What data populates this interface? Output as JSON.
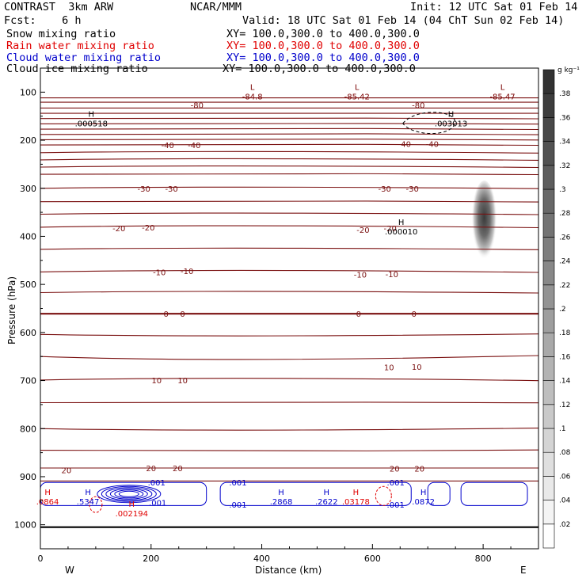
{
  "header": {
    "model": "CONTRAST  3km ARW",
    "org": "NCAR/MMM",
    "init": "Init: 12 UTC Sat 01 Feb 14",
    "fcst": "Fcst:    6 h",
    "valid": "Valid: 18 UTC Sat 01 Feb 14 (04 ChT Sun 02 Feb 14)",
    "fields": [
      {
        "name": "Snow mixing ratio",
        "xy": "XY= 100.0,300.0 to 400.0,300.0",
        "color": "#000000"
      },
      {
        "name": "Rain water mixing ratio",
        "xy": "XY= 100.0,300.0 to 400.0,300.0",
        "color": "#e00000"
      },
      {
        "name": "Cloud water mixing ratio",
        "xy": "XY= 100.0,300.0 to 400.0,300.0",
        "color": "#0000cc"
      },
      {
        "name": "Cloud ice mixing ratio",
        "xy": "XY= 100.0,300.0 to 400.0,300.0",
        "color": "#000000"
      }
    ]
  },
  "chart_data": {
    "type": "contour",
    "xlabel": "Distance (km)",
    "ylabel": "Pressure (hPa)",
    "x_ticks": [
      0,
      200,
      400,
      600,
      800
    ],
    "xlim": [
      0,
      900
    ],
    "y_ticks": [
      100,
      200,
      300,
      400,
      500,
      600,
      700,
      800,
      900,
      1000
    ],
    "ylim": [
      50,
      1050
    ],
    "x_end_labels": {
      "left": "W",
      "right": "E"
    },
    "colorbar": {
      "unit": "g kg⁻¹",
      "ticks": [
        ".02",
        ".04",
        ".06",
        ".08",
        ".1",
        ".12",
        ".14",
        ".16",
        ".18",
        ".2",
        ".22",
        ".24",
        ".26",
        ".28",
        ".3",
        ".32",
        ".34",
        ".36",
        ".38"
      ]
    },
    "temperature_labels": [
      {
        "text": "-80",
        "x": 283,
        "p": 127
      },
      {
        "text": "-80",
        "x": 683,
        "p": 127
      },
      {
        "text": "-40",
        "x": 230,
        "p": 210
      },
      {
        "text": "-40",
        "x": 278,
        "p": 210
      },
      {
        "text": "-40",
        "x": 658,
        "p": 207
      },
      {
        "text": "-40",
        "x": 708,
        "p": 207
      },
      {
        "text": "-30",
        "x": 187,
        "p": 300
      },
      {
        "text": "-30",
        "x": 237,
        "p": 300
      },
      {
        "text": "-30",
        "x": 622,
        "p": 300
      },
      {
        "text": "-30",
        "x": 672,
        "p": 300
      },
      {
        "text": "-20",
        "x": 142,
        "p": 383
      },
      {
        "text": "-20",
        "x": 195,
        "p": 381
      },
      {
        "text": "-20",
        "x": 583,
        "p": 386
      },
      {
        "text": "-20",
        "x": 632,
        "p": 383
      },
      {
        "text": "-10",
        "x": 215,
        "p": 474
      },
      {
        "text": "-10",
        "x": 265,
        "p": 472
      },
      {
        "text": "-10",
        "x": 578,
        "p": 479
      },
      {
        "text": "-10",
        "x": 635,
        "p": 478
      },
      {
        "text": "0",
        "x": 227,
        "p": 561
      },
      {
        "text": "0",
        "x": 257,
        "p": 561
      },
      {
        "text": "0",
        "x": 575,
        "p": 561
      },
      {
        "text": "0",
        "x": 675,
        "p": 561
      },
      {
        "text": "10",
        "x": 210,
        "p": 699
      },
      {
        "text": "10",
        "x": 257,
        "p": 699
      },
      {
        "text": "10",
        "x": 630,
        "p": 672
      },
      {
        "text": "10",
        "x": 680,
        "p": 671
      },
      {
        "text": "20",
        "x": 47,
        "p": 886
      },
      {
        "text": "20",
        "x": 200,
        "p": 882
      },
      {
        "text": "20",
        "x": 248,
        "p": 882
      },
      {
        "text": "20",
        "x": 640,
        "p": 883
      },
      {
        "text": "20",
        "x": 685,
        "p": 883
      }
    ],
    "extrema": [
      {
        "kind": "L",
        "value": "-84.8",
        "x": 383,
        "p": 100,
        "color": "#7a0000"
      },
      {
        "kind": "L",
        "value": "-85.42",
        "x": 572,
        "p": 100,
        "color": "#7a0000"
      },
      {
        "kind": "L",
        "value": "-85.47",
        "x": 835,
        "p": 100,
        "color": "#7a0000"
      },
      {
        "kind": "H",
        "value": ".000518",
        "x": 92,
        "p": 156,
        "color": "#000000"
      },
      {
        "kind": "H",
        "value": ".003013",
        "x": 742,
        "p": 156,
        "color": "#000000"
      },
      {
        "kind": "H",
        "value": ".000010",
        "x": 652,
        "p": 381,
        "color": "#000000"
      },
      {
        "kind": "H",
        "value": ".0864",
        "x": 13,
        "p": 943,
        "color": "#e00000"
      },
      {
        "kind": "H",
        "value": ".5347",
        "x": 86,
        "p": 943,
        "color": "#0000cc"
      },
      {
        "kind": "H",
        "value": ".002194",
        "x": 165,
        "p": 968,
        "color": "#e00000"
      },
      {
        "kind": "H",
        "value": ".2868",
        "x": 435,
        "p": 943,
        "color": "#0000cc"
      },
      {
        "kind": "H",
        "value": ".2622",
        "x": 517,
        "p": 943,
        "color": "#0000cc"
      },
      {
        "kind": "H",
        "value": ".03178",
        "x": 570,
        "p": 943,
        "color": "#e00000"
      },
      {
        "kind": "H",
        "value": ".0872",
        "x": 692,
        "p": 943,
        "color": "#0000cc"
      }
    ],
    "cloud_water_contour_labels": [
      {
        "text": ".001",
        "x": 210,
        "p": 912
      },
      {
        "text": ".001",
        "x": 212,
        "p": 954
      },
      {
        "text": ".001",
        "x": 357,
        "p": 912
      },
      {
        "text": ".001",
        "x": 357,
        "p": 958
      },
      {
        "text": ".001",
        "x": 642,
        "p": 912
      },
      {
        "text": ".001",
        "x": 642,
        "p": 958
      }
    ],
    "cloud_ice_max": {
      "x": 802,
      "p_top": 330,
      "p_bottom": 410,
      "value": 0.37
    }
  }
}
